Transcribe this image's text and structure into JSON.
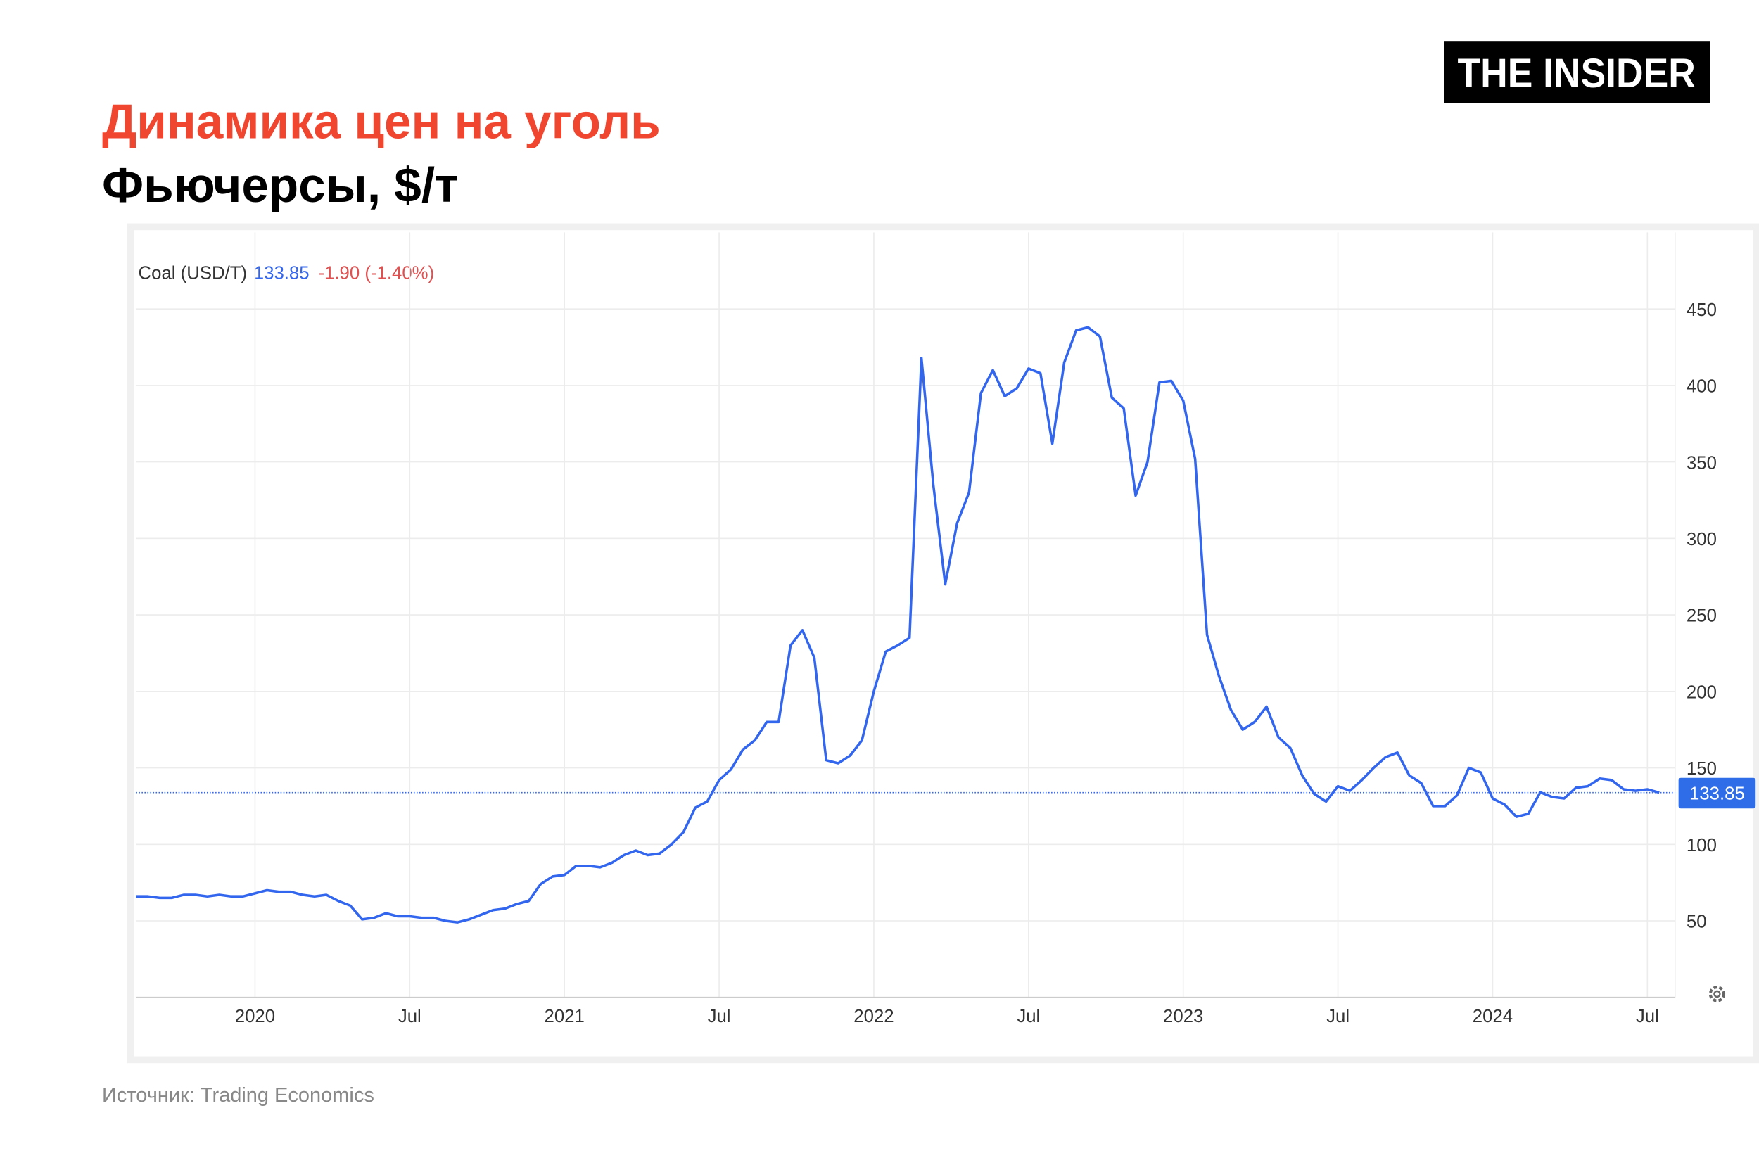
{
  "chart_data": {
    "type": "line",
    "title": "Динамика цен на уголь",
    "subtitle": "Фьючерсы, $/т",
    "brand": "THE INSIDER",
    "source": "Источник: Trading Economics",
    "legend": {
      "name": "Coal (USD/T)",
      "change": "-1.90 (-1.40%)"
    },
    "reference_line": {
      "value": 133.85,
      "label": "133.85"
    },
    "categories": [
      null,
      null,
      null,
      null,
      null,
      null,
      null,
      null,
      null,
      null,
      "2020",
      null,
      null,
      null,
      null,
      null,
      null,
      null,
      null,
      null,
      null,
      null,
      null,
      "Jul",
      null,
      null,
      null,
      null,
      null,
      null,
      null,
      null,
      null,
      null,
      null,
      null,
      "2021",
      null,
      null,
      null,
      null,
      null,
      null,
      null,
      null,
      null,
      null,
      null,
      null,
      "Jul",
      null,
      null,
      null,
      null,
      null,
      null,
      null,
      null,
      null,
      null,
      null,
      null,
      "2022",
      null,
      null,
      null,
      null,
      null,
      null,
      null,
      null,
      null,
      null,
      null,
      null,
      "Jul",
      null,
      null,
      null,
      null,
      null,
      null,
      null,
      null,
      null,
      null,
      null,
      null,
      "2023",
      null,
      null,
      null,
      null,
      null,
      null,
      null,
      null,
      null,
      null,
      null,
      null,
      "Jul",
      null,
      null,
      null,
      null,
      null,
      null,
      null,
      null,
      null,
      null,
      null,
      null,
      "2024",
      null,
      null,
      null,
      null,
      null,
      null,
      null,
      null,
      null,
      null,
      null,
      null,
      "Jul",
      null
    ],
    "series": [
      {
        "name": "Coal (USD/T)",
        "color": "#3366ee",
        "values": [
          66,
          66,
          65,
          65,
          67,
          67,
          66,
          67,
          66,
          66,
          68,
          70,
          69,
          69,
          67,
          66,
          67,
          63,
          60,
          51,
          52,
          55,
          53,
          53,
          52,
          52,
          50,
          49,
          51,
          54,
          57,
          58,
          61,
          63,
          74,
          79,
          80,
          86,
          86,
          85,
          88,
          93,
          96,
          93,
          94,
          100,
          108,
          124,
          128,
          142,
          149,
          162,
          168,
          180,
          180,
          230,
          240,
          222,
          155,
          153,
          158,
          168,
          200,
          226,
          230,
          235,
          418,
          335,
          270,
          310,
          330,
          395,
          410,
          393,
          398,
          411,
          408,
          362,
          415,
          436,
          438,
          432,
          392,
          385,
          328,
          350,
          402,
          403,
          390,
          352,
          237,
          210,
          188,
          175,
          180,
          190,
          170,
          163,
          145,
          133,
          128,
          138,
          135,
          142,
          150,
          157,
          160,
          145,
          140,
          125,
          125,
          132,
          150,
          147,
          130,
          126,
          118,
          120,
          134,
          131,
          130,
          137,
          138,
          143,
          142,
          136,
          135,
          136,
          133.85
        ]
      }
    ],
    "ylim": [
      0,
      500
    ],
    "yticks": [
      50,
      100,
      150,
      200,
      250,
      300,
      350,
      400,
      450
    ],
    "grid": true
  }
}
